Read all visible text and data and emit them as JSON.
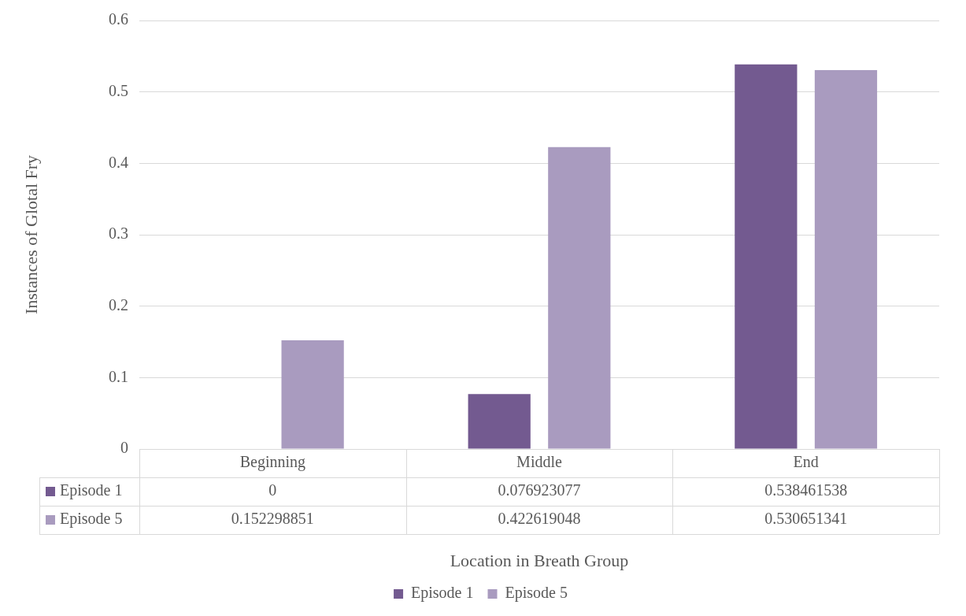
{
  "chart_data": {
    "type": "bar",
    "xlabel": "Location in Breath Group",
    "ylabel": "Instances of Glotal Fry",
    "categories": [
      "Beginning",
      "Middle",
      "End"
    ],
    "series": [
      {
        "name": "Episode 1",
        "color": "#735a90",
        "values": [
          0,
          0.076923077,
          0.538461538
        ]
      },
      {
        "name": "Episode 5",
        "color": "#a99bbf",
        "values": [
          0.152298851,
          0.422619048,
          0.530651341
        ]
      }
    ],
    "ylim": [
      0,
      0.6
    ],
    "yticks": [
      0,
      0.1,
      0.2,
      0.3,
      0.4,
      0.5,
      0.6
    ],
    "grid": "y",
    "legend": "bottom",
    "data_labels": true
  }
}
